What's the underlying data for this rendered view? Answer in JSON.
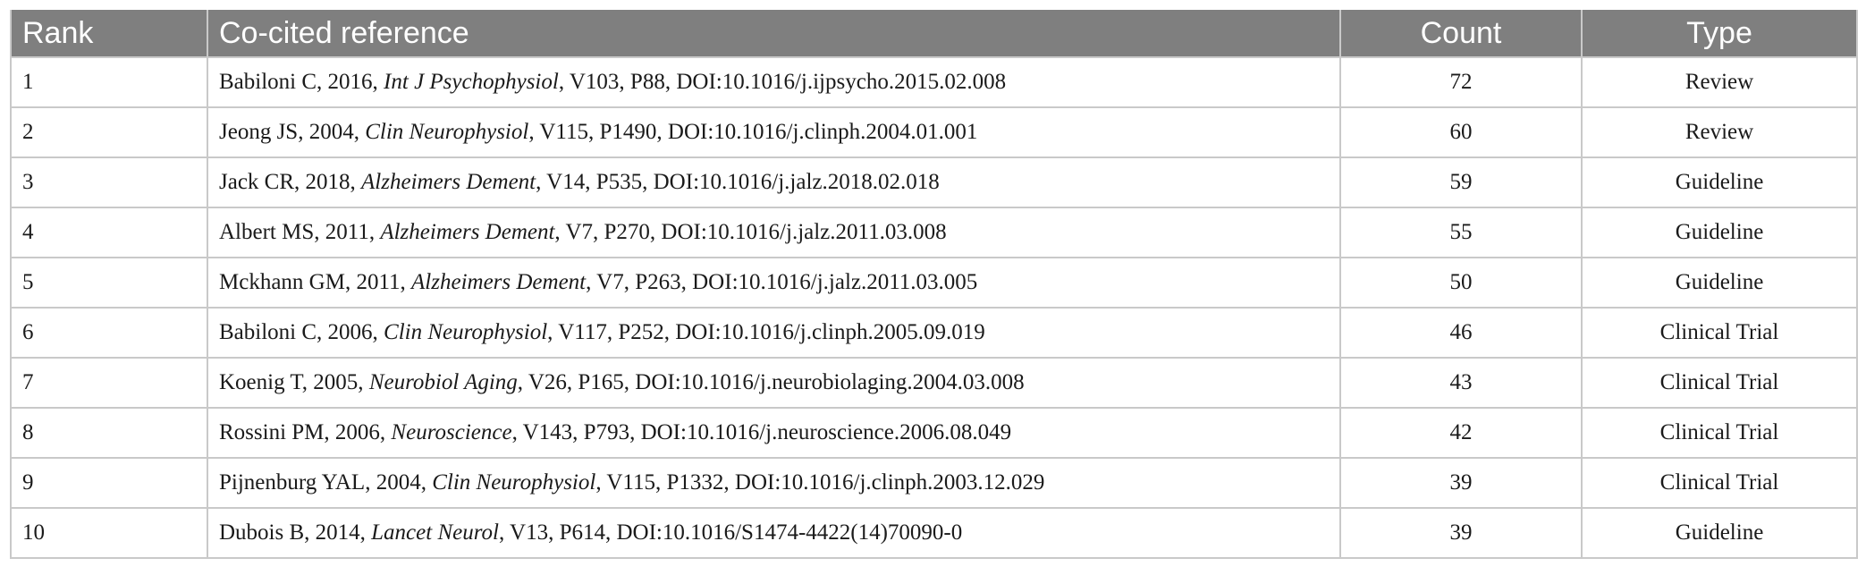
{
  "table": {
    "headers": {
      "rank": "Rank",
      "reference": "Co-cited reference",
      "count": "Count",
      "type": "Type"
    },
    "rows": [
      {
        "rank": "1",
        "ref_pre": "Babiloni C, 2016, ",
        "journal": "Int J Psychophysiol",
        "ref_post": ", V103, P88, DOI:10.1016/j.ijpsycho.2015.02.008",
        "count": "72",
        "type": "Review"
      },
      {
        "rank": "2",
        "ref_pre": "Jeong JS, 2004, ",
        "journal": "Clin Neurophysiol",
        "ref_post": ", V115, P1490, DOI:10.1016/j.clinph.2004.01.001",
        "count": "60",
        "type": "Review"
      },
      {
        "rank": "3",
        "ref_pre": "Jack CR, 2018, ",
        "journal": "Alzheimers Dement",
        "ref_post": ", V14, P535, DOI:10.1016/j.jalz.2018.02.018",
        "count": "59",
        "type": "Guideline"
      },
      {
        "rank": "4",
        "ref_pre": "Albert MS, 2011, ",
        "journal": "Alzheimers Dement",
        "ref_post": ", V7, P270, DOI:10.1016/j.jalz.2011.03.008",
        "count": "55",
        "type": "Guideline"
      },
      {
        "rank": "5",
        "ref_pre": "Mckhann GM, 2011, ",
        "journal": "Alzheimers Dement",
        "ref_post": ", V7, P263, DOI:10.1016/j.jalz.2011.03.005",
        "count": "50",
        "type": "Guideline"
      },
      {
        "rank": "6",
        "ref_pre": "Babiloni C, 2006, ",
        "journal": "Clin Neurophysiol",
        "ref_post": ", V117, P252, DOI:10.1016/j.clinph.2005.09.019",
        "count": "46",
        "type": "Clinical Trial"
      },
      {
        "rank": "7",
        "ref_pre": "Koenig T, 2005, ",
        "journal": "Neurobiol Aging",
        "ref_post": ", V26, P165, DOI:10.1016/j.neurobiolaging.2004.03.008",
        "count": "43",
        "type": "Clinical Trial"
      },
      {
        "rank": "8",
        "ref_pre": "Rossini PM, 2006, ",
        "journal": "Neuroscience",
        "ref_post": ", V143, P793, DOI:10.1016/j.neuroscience.2006.08.049",
        "count": "42",
        "type": "Clinical Trial"
      },
      {
        "rank": "9",
        "ref_pre": "Pijnenburg YAL, 2004, ",
        "journal": "Clin Neurophysiol",
        "ref_post": ", V115, P1332, DOI:10.1016/j.clinph.2003.12.029",
        "count": "39",
        "type": "Clinical Trial"
      },
      {
        "rank": "10",
        "ref_pre": "Dubois B, 2014, ",
        "journal": "Lancet Neurol",
        "ref_post": ", V13, P614, DOI:10.1016/S1474-4422(14)70090-0",
        "count": "39",
        "type": "Guideline"
      }
    ]
  },
  "colors": {
    "header_bg": "#7f7f7f",
    "header_text": "#ffffff",
    "grid": "#c9c9c9",
    "body_text": "#1a1a1a"
  }
}
